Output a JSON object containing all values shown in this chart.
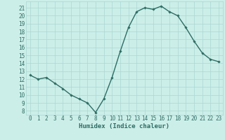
{
  "x": [
    0,
    1,
    2,
    3,
    4,
    5,
    6,
    7,
    8,
    9,
    10,
    11,
    12,
    13,
    14,
    15,
    16,
    17,
    18,
    19,
    20,
    21,
    22,
    23
  ],
  "y": [
    12.5,
    12.0,
    12.2,
    11.5,
    10.8,
    10.0,
    9.5,
    9.0,
    7.8,
    9.5,
    12.2,
    15.5,
    18.5,
    20.5,
    21.0,
    20.8,
    21.2,
    20.5,
    20.0,
    18.5,
    16.8,
    15.3,
    14.5,
    14.2
  ],
  "xlabel": "Humidex (Indice chaleur)",
  "line_color": "#2d6e63",
  "marker": "D",
  "marker_size": 1.8,
  "line_width": 1.0,
  "bg_color": "#cceee9",
  "grid_color": "#aad8d2",
  "tick_label_color": "#2d6e63",
  "xlabel_color": "#2d6e63",
  "ylim": [
    7.5,
    21.8
  ],
  "xlim": [
    -0.5,
    23.5
  ],
  "yticks": [
    8,
    9,
    10,
    11,
    12,
    13,
    14,
    15,
    16,
    17,
    18,
    19,
    20,
    21
  ],
  "xticks": [
    0,
    1,
    2,
    3,
    4,
    5,
    6,
    7,
    8,
    9,
    10,
    11,
    12,
    13,
    14,
    15,
    16,
    17,
    18,
    19,
    20,
    21,
    22,
    23
  ],
  "tick_fontsize": 5.5,
  "xlabel_fontsize": 6.5
}
